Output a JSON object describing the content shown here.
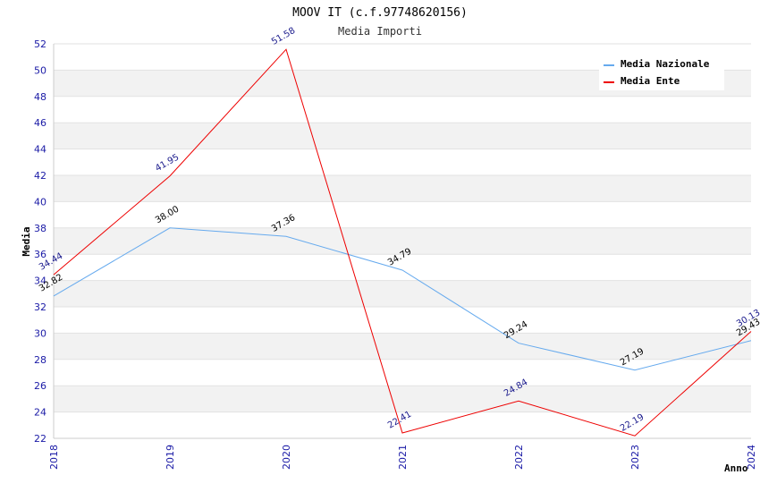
{
  "chart_data": {
    "type": "line",
    "title": "MOOV IT (c.f.97748620156)",
    "subtitle": "Media Importi",
    "xlabel": "Anno",
    "ylabel": "Media",
    "x": [
      "2018",
      "2019",
      "2020",
      "2021",
      "2022",
      "2023",
      "2024"
    ],
    "ylim": [
      22,
      52
    ],
    "yticks": [
      22,
      24,
      26,
      28,
      30,
      32,
      34,
      36,
      38,
      40,
      42,
      44,
      46,
      48,
      50,
      52
    ],
    "grid": "horizontal alternating bands",
    "legend": "top-right",
    "series": [
      {
        "name": "Media Nazionale",
        "color": "#66aaee",
        "label_color": "#000000",
        "values": [
          32.82,
          38.0,
          37.36,
          34.79,
          29.24,
          27.19,
          29.43
        ],
        "labels": [
          "32.82",
          "38.00",
          "37.36",
          "34.79",
          "29.24",
          "27.19",
          "29.43"
        ]
      },
      {
        "name": "Media Ente",
        "color": "#ee0000",
        "label_color": "#1a1a8c",
        "values": [
          34.44,
          41.95,
          51.58,
          22.41,
          24.84,
          22.19,
          30.13
        ],
        "labels": [
          "34.44",
          "41.95",
          "51.58",
          "22.41",
          "24.84",
          "22.19",
          "30.13"
        ]
      }
    ]
  }
}
